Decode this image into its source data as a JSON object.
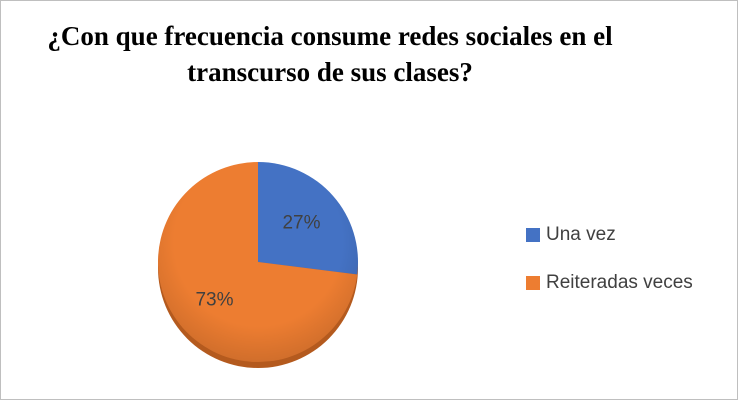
{
  "chart_data": {
    "type": "pie",
    "title": "¿Con que frecuencia consume redes sociales en el transcurso de sus clases?",
    "categories": [
      "Una vez",
      "Reiteradas veces"
    ],
    "values": [
      27,
      73
    ],
    "value_labels": [
      "27%",
      "73%"
    ],
    "colors": [
      "#4472c4",
      "#ed7d31"
    ],
    "legend": "right"
  }
}
